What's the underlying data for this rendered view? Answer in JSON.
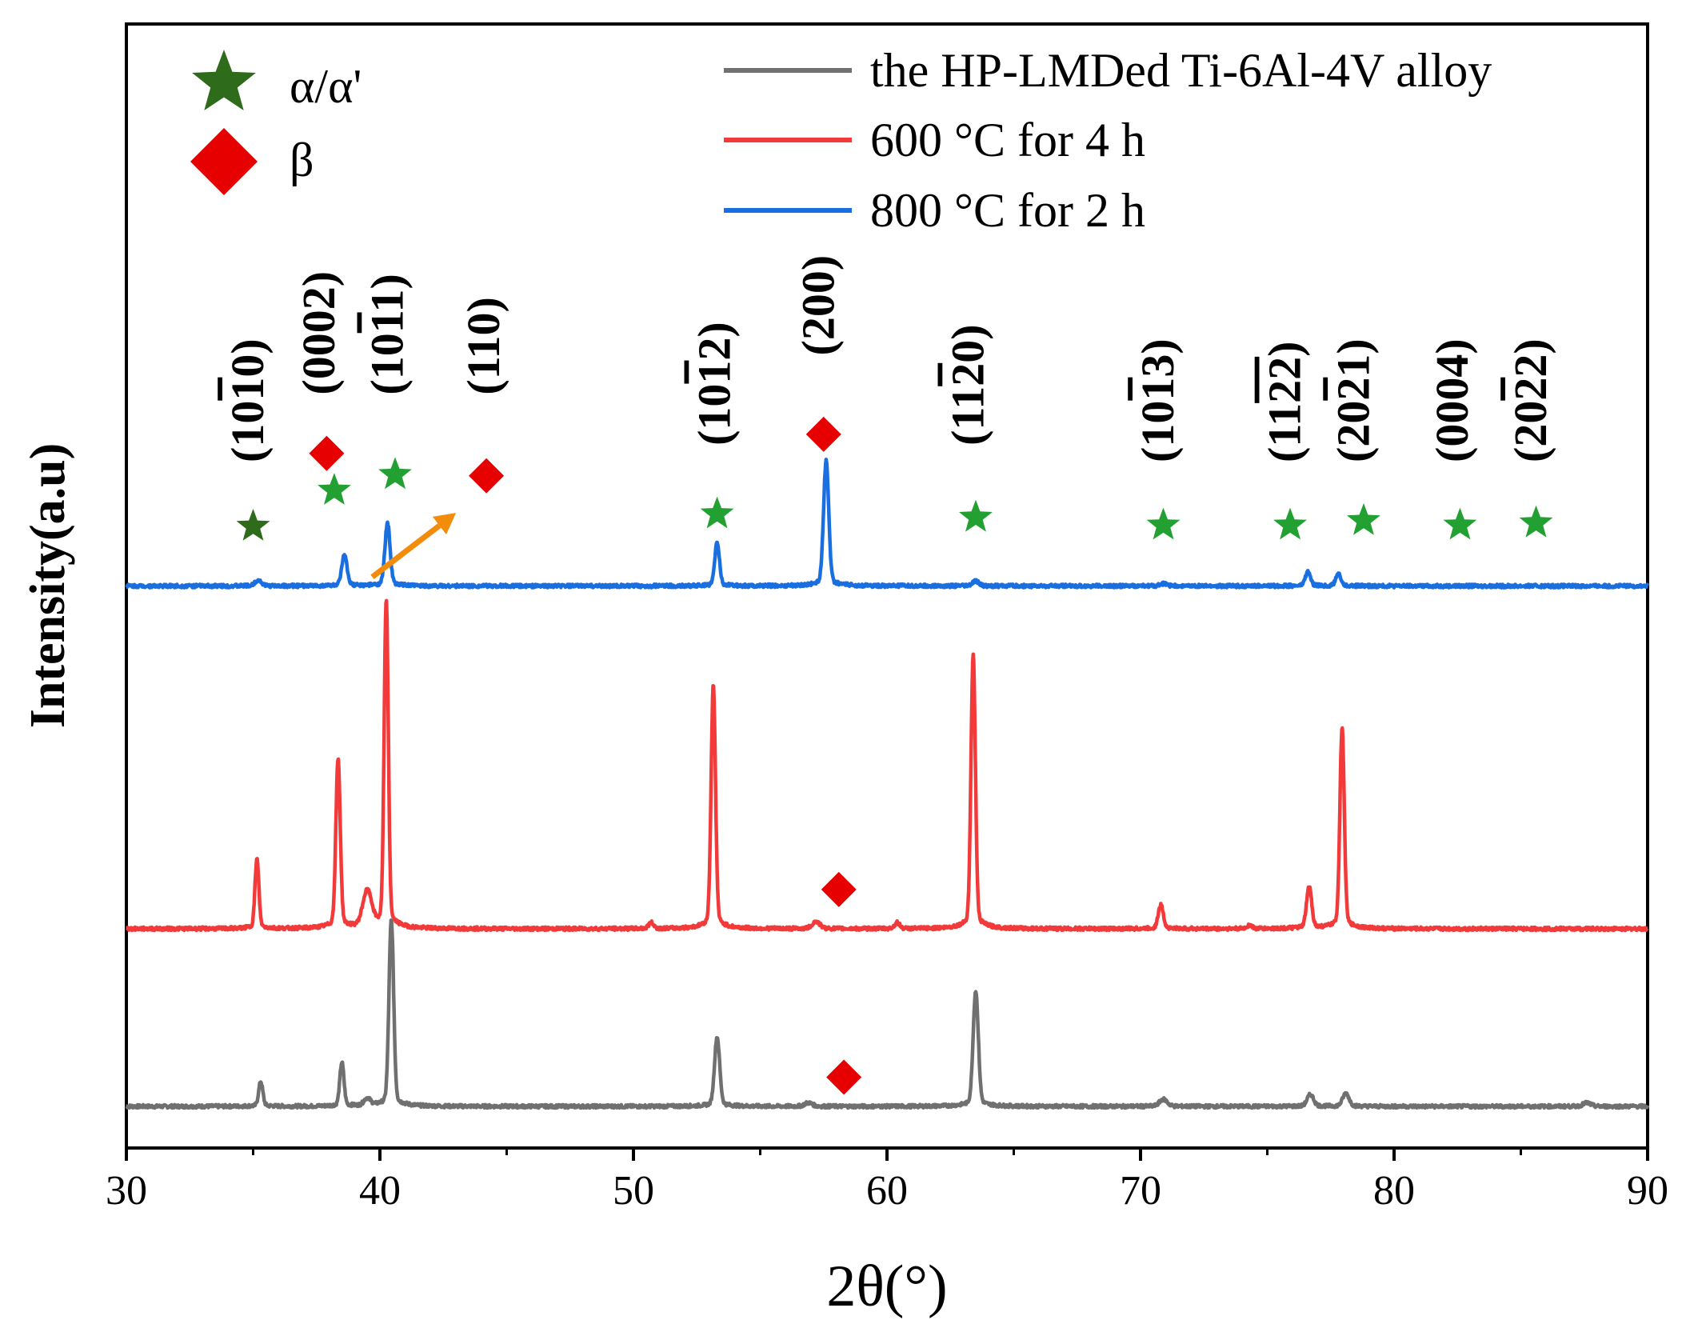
{
  "chart_data": {
    "type": "line",
    "title": "",
    "xlabel": "2θ(°)",
    "ylabel": "Intensity(a.u)",
    "xlim": [
      30,
      90
    ],
    "ylim": [
      0,
      1
    ],
    "xticks": [
      "30",
      "40",
      "50",
      "60",
      "70",
      "80",
      "90"
    ],
    "grid": false,
    "legend_position": "top-right",
    "series": [
      {
        "name": "the HP-LMDed Ti-6Al-4V alloy",
        "color": "#707070",
        "baseline": 0.037,
        "noise": 0.0015,
        "peaks": [
          {
            "x": 35.3,
            "h": 0.021,
            "w": 0.16
          },
          {
            "x": 38.5,
            "h": 0.037,
            "w": 0.16
          },
          {
            "x": 39.5,
            "h": 0.006,
            "w": 0.25
          },
          {
            "x": 40.45,
            "h": 0.158,
            "w": 0.18
          },
          {
            "x": 53.3,
            "h": 0.059,
            "w": 0.2
          },
          {
            "x": 56.9,
            "h": 0.003,
            "w": 0.3
          },
          {
            "x": 63.5,
            "h": 0.098,
            "w": 0.2
          },
          {
            "x": 70.9,
            "h": 0.006,
            "w": 0.3
          },
          {
            "x": 76.7,
            "h": 0.01,
            "w": 0.25
          },
          {
            "x": 78.1,
            "h": 0.011,
            "w": 0.25
          },
          {
            "x": 87.6,
            "h": 0.003,
            "w": 0.3
          }
        ]
      },
      {
        "name": "600 °C for 4 h",
        "color": "#f23a3a",
        "baseline": 0.195,
        "noise": 0.0015,
        "peaks": [
          {
            "x": 35.15,
            "h": 0.059,
            "w": 0.15
          },
          {
            "x": 38.35,
            "h": 0.143,
            "w": 0.17
          },
          {
            "x": 39.5,
            "h": 0.03,
            "w": 0.35
          },
          {
            "x": 40.25,
            "h": 0.278,
            "w": 0.16
          },
          {
            "x": 50.7,
            "h": 0.005,
            "w": 0.2
          },
          {
            "x": 53.15,
            "h": 0.206,
            "w": 0.17
          },
          {
            "x": 57.2,
            "h": 0.006,
            "w": 0.3
          },
          {
            "x": 60.4,
            "h": 0.005,
            "w": 0.2
          },
          {
            "x": 63.4,
            "h": 0.232,
            "w": 0.17
          },
          {
            "x": 70.8,
            "h": 0.02,
            "w": 0.2
          },
          {
            "x": 74.3,
            "h": 0.003,
            "w": 0.2
          },
          {
            "x": 76.65,
            "h": 0.035,
            "w": 0.2
          },
          {
            "x": 77.95,
            "h": 0.17,
            "w": 0.17
          }
        ]
      },
      {
        "name": "800 °C for 2 h",
        "color": "#1a6fe0",
        "baseline": 0.5,
        "noise": 0.0015,
        "peaks": [
          {
            "x": 35.2,
            "h": 0.005,
            "w": 0.25
          },
          {
            "x": 38.6,
            "h": 0.026,
            "w": 0.2
          },
          {
            "x": 40.3,
            "h": 0.053,
            "w": 0.2
          },
          {
            "x": 53.3,
            "h": 0.037,
            "w": 0.18
          },
          {
            "x": 57.6,
            "h": 0.106,
            "w": 0.2
          },
          {
            "x": 63.5,
            "h": 0.004,
            "w": 0.25
          },
          {
            "x": 70.9,
            "h": 0.002,
            "w": 0.25
          },
          {
            "x": 76.6,
            "h": 0.012,
            "w": 0.2
          },
          {
            "x": 77.8,
            "h": 0.01,
            "w": 0.2
          }
        ]
      }
    ],
    "phase_legend": [
      {
        "symbol": "star",
        "label": "α/α'",
        "color": "#2e6b1a"
      },
      {
        "symbol": "diamond",
        "label": "β",
        "color": "#e60000"
      }
    ],
    "markers": [
      {
        "type": "star",
        "x": 35.0,
        "y": 0.553,
        "color": "#2e6b1a"
      },
      {
        "type": "star",
        "x": 38.2,
        "y": 0.585,
        "color": "#22a032"
      },
      {
        "type": "star",
        "x": 40.6,
        "y": 0.599,
        "color": "#22a032"
      },
      {
        "type": "star",
        "x": 53.3,
        "y": 0.564,
        "color": "#22a032"
      },
      {
        "type": "star",
        "x": 63.5,
        "y": 0.561,
        "color": "#22a032"
      },
      {
        "type": "star",
        "x": 70.9,
        "y": 0.554,
        "color": "#22a032"
      },
      {
        "type": "star",
        "x": 75.9,
        "y": 0.554,
        "color": "#22a032"
      },
      {
        "type": "star",
        "x": 78.8,
        "y": 0.558,
        "color": "#22a032"
      },
      {
        "type": "star",
        "x": 82.6,
        "y": 0.554,
        "color": "#22a032"
      },
      {
        "type": "star",
        "x": 85.6,
        "y": 0.556,
        "color": "#22a032"
      },
      {
        "type": "diamond",
        "x": 37.9,
        "y": 0.618,
        "color": "#e60000"
      },
      {
        "type": "diamond",
        "x": 44.2,
        "y": 0.598,
        "color": "#e60000"
      },
      {
        "type": "diamond",
        "x": 57.5,
        "y": 0.635,
        "color": "#e60000"
      },
      {
        "type": "diamond",
        "x": 58.1,
        "y": 0.23,
        "color": "#e60000"
      },
      {
        "type": "diamond",
        "x": 58.3,
        "y": 0.063,
        "color": "#e60000"
      }
    ],
    "annotations": [
      {
        "x": 35.4,
        "y": 0.61,
        "text": "(10",
        "over": "1",
        "tail": "0)"
      },
      {
        "x": 38.2,
        "y": 0.67,
        "text": "(0002)",
        "over": "",
        "tail": ""
      },
      {
        "x": 40.9,
        "y": 0.67,
        "text": "(10",
        "over": "1",
        "tail": "1)"
      },
      {
        "x": 44.7,
        "y": 0.67,
        "text": "(110)",
        "over": "",
        "tail": ""
      },
      {
        "x": 53.8,
        "y": 0.625,
        "text": "(10",
        "over": "1",
        "tail": "2)"
      },
      {
        "x": 57.9,
        "y": 0.705,
        "text": "(200)",
        "over": "",
        "tail": ""
      },
      {
        "x": 63.8,
        "y": 0.625,
        "text": "(11",
        "over": "2",
        "tail": "0)"
      },
      {
        "x": 71.3,
        "y": 0.61,
        "text": "(10",
        "over": "1",
        "tail": "3)"
      },
      {
        "x": 76.3,
        "y": 0.61,
        "text": "(11",
        "over": "22",
        "tail": ")"
      },
      {
        "x": 79.0,
        "y": 0.61,
        "text": "(20",
        "over": "2",
        "tail": "1)"
      },
      {
        "x": 82.9,
        "y": 0.61,
        "text": "(0004)",
        "over": "",
        "tail": ""
      },
      {
        "x": 86.0,
        "y": 0.61,
        "text": "(20",
        "over": "2",
        "tail": "2)"
      }
    ],
    "arrow": {
      "x1": 39.7,
      "y1": 0.508,
      "x2": 43.0,
      "y2": 0.565,
      "color": "#f28c0a"
    }
  }
}
